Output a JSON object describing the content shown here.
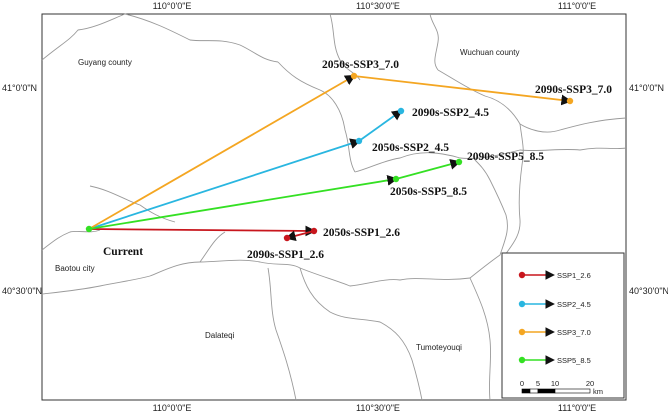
{
  "coordinates": {
    "top": [
      "110°0'0\"E",
      "110°30'0\"E",
      "111°0'0\"E"
    ],
    "bottom": [
      "110°0'0\"E",
      "110°30'0\"E",
      "111°0'0\"E"
    ],
    "left": [
      "41°0'0\"N",
      "40°30'0\"N"
    ],
    "right": [
      "41°0'0\"N",
      "40°30'0\"N"
    ]
  },
  "counties": {
    "guyang": "Guyang county",
    "wuchuan": "Wuchuan county",
    "baotou": "Baotou city",
    "dalateqi": "Dalateqi",
    "tumoteyouqi": "Tumoteyouqi"
  },
  "points": {
    "current": "Current",
    "ssp1_2050": "2050s-SSP1_2.6",
    "ssp1_2090": "2090s-SSP1_2.6",
    "ssp2_2050": "2050s-SSP2_4.5",
    "ssp2_2090": "2090s-SSP2_4.5",
    "ssp3_2050": "2050s-SSP3_7.0",
    "ssp3_2090": "2090s-SSP3_7.0",
    "ssp5_2050": "2050s-SSP5_8.5",
    "ssp5_2090": "2090s-SSP5_8.5"
  },
  "legend": {
    "items": [
      {
        "label": "SSP1_2.6",
        "color": "#c8161d"
      },
      {
        "label": "SSP2_4.5",
        "color": "#29b6e0"
      },
      {
        "label": "SSP3_7.0",
        "color": "#f4a622"
      },
      {
        "label": "SSP5_8.5",
        "color": "#34e023"
      }
    ]
  },
  "scale_bar": {
    "ticks": [
      "0",
      "5",
      "10",
      "20"
    ],
    "unit": "km"
  },
  "colors": {
    "ssp1": "#c8161d",
    "ssp2": "#29b6e0",
    "ssp3": "#f4a622",
    "ssp5": "#34e023",
    "boundary": "#9a9a9a"
  }
}
